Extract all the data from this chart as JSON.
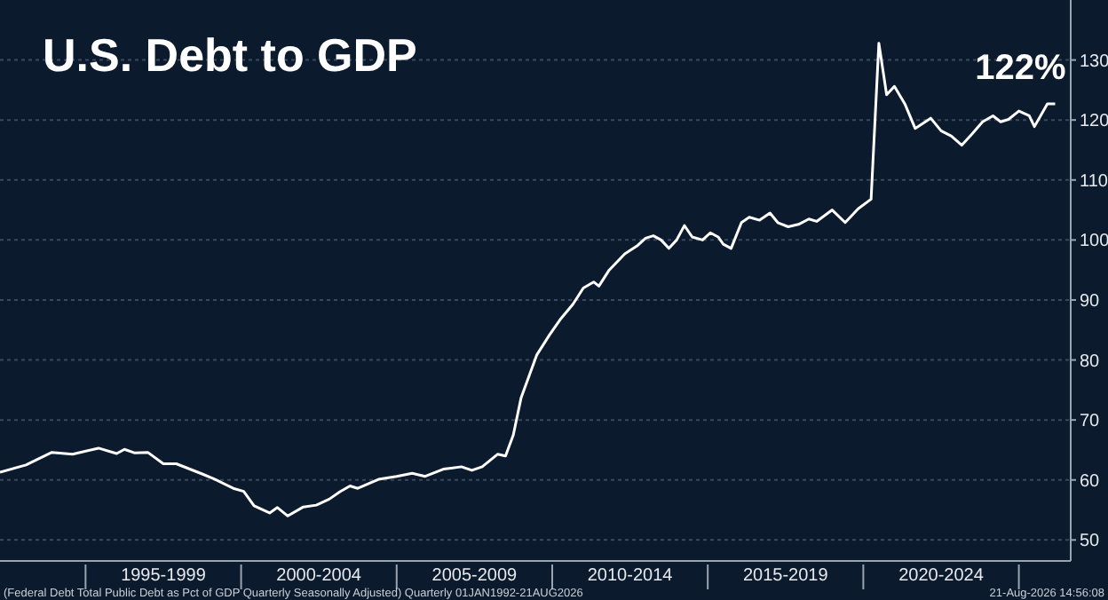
{
  "chart_data": {
    "type": "line",
    "title": "U.S. Debt to GDP",
    "x": [
      "1992-04",
      "1993-02",
      "1993-12",
      "1994-08",
      "1995-06",
      "1996-01",
      "1996-04",
      "1996-08",
      "1997-01",
      "1997-07",
      "1997-12",
      "1998-10",
      "1999-03",
      "1999-10",
      "2000-02",
      "2000-06",
      "2000-12",
      "2001-03",
      "2001-07",
      "2002-01",
      "2002-06",
      "2002-11",
      "2003-03",
      "2003-07",
      "2003-10",
      "2004-06",
      "2005-01",
      "2005-07",
      "2005-12",
      "2006-07",
      "2007-02",
      "2007-06",
      "2007-10",
      "2008-04",
      "2008-07",
      "2008-10",
      "2009-01",
      "2009-07",
      "2009-12",
      "2010-04",
      "2010-09",
      "2011-01",
      "2011-05",
      "2011-07",
      "2011-11",
      "2012-05",
      "2012-10",
      "2013-01",
      "2013-04",
      "2013-07",
      "2013-10",
      "2014-01",
      "2014-04",
      "2014-07",
      "2014-11",
      "2015-02",
      "2015-05",
      "2015-07",
      "2015-10",
      "2016-02",
      "2016-05",
      "2016-09",
      "2017-01",
      "2017-04",
      "2017-08",
      "2017-12",
      "2018-04",
      "2018-07",
      "2019-01",
      "2019-06",
      "2019-11",
      "2020-04",
      "2020-07",
      "2020-10",
      "2021-01",
      "2021-05",
      "2021-09",
      "2022-03",
      "2022-07",
      "2022-11",
      "2023-03",
      "2023-07",
      "2023-11",
      "2024-03",
      "2024-06",
      "2024-09",
      "2025-01",
      "2025-05",
      "2025-07",
      "2025-12",
      "2026-03"
    ],
    "series": [
      {
        "color": "#ffffff",
        "values": [
          61.3,
          62.5,
          64.6,
          64.3,
          65.3,
          64.4,
          65.1,
          64.5,
          64.6,
          62.7,
          62.7,
          61.0,
          60.1,
          58.6,
          58.1,
          55.7,
          54.5,
          55.4,
          54.0,
          55.5,
          55.8,
          56.8,
          58.0,
          59.0,
          58.6,
          60.1,
          60.6,
          61.1,
          60.6,
          61.8,
          62.2,
          61.6,
          62.2,
          64.3,
          64.0,
          67.5,
          73.7,
          80.8,
          84.2,
          86.7,
          89.3,
          92.0,
          93.0,
          92.3,
          95.0,
          97.7,
          99.1,
          100.3,
          100.7,
          100.0,
          98.6,
          100.0,
          102.4,
          100.5,
          100.0,
          101.2,
          100.5,
          99.3,
          98.6,
          102.9,
          103.8,
          103.3,
          104.5,
          102.9,
          102.2,
          102.6,
          103.5,
          103.1,
          105.0,
          102.9,
          105.2,
          106.8,
          132.8,
          124.2,
          125.6,
          122.7,
          118.6,
          120.3,
          118.2,
          117.3,
          115.8,
          117.7,
          119.7,
          120.7,
          119.7,
          120.1,
          121.5,
          120.7,
          118.9,
          122.7,
          122.7
        ]
      }
    ],
    "xlim": [
      "1992-04",
      "2026-09"
    ],
    "xticks": [
      {
        "value": "1995-01",
        "label": null
      },
      {
        "value": "1997-07",
        "label": "1995-1999"
      },
      {
        "value": "2000-01",
        "label": null
      },
      {
        "value": "2002-07",
        "label": "2000-2004"
      },
      {
        "value": "2005-01",
        "label": null
      },
      {
        "value": "2007-07",
        "label": "2005-2009"
      },
      {
        "value": "2010-01",
        "label": null
      },
      {
        "value": "2012-07",
        "label": "2010-2014"
      },
      {
        "value": "2015-01",
        "label": null
      },
      {
        "value": "2017-07",
        "label": "2015-2019"
      },
      {
        "value": "2020-01",
        "label": null
      },
      {
        "value": "2022-07",
        "label": "2020-2024"
      },
      {
        "value": "2025-01",
        "label": null
      }
    ],
    "ylim": [
      46.5,
      140
    ],
    "yticks": [
      50,
      60,
      70,
      80,
      90,
      100,
      110,
      120,
      130
    ],
    "grid": "y",
    "marker": "none",
    "line_style": "solid",
    "annotations": [
      {
        "text": "122%",
        "x": "2026-03",
        "y": 122.7
      },
      "(Federal Debt Total Public Debt as Pct of GDP Quarterly Seasonally Adjusted) Quarterly 01JAN1992-21AUG2026",
      "21-Aug-2026 14:56:08"
    ]
  }
}
